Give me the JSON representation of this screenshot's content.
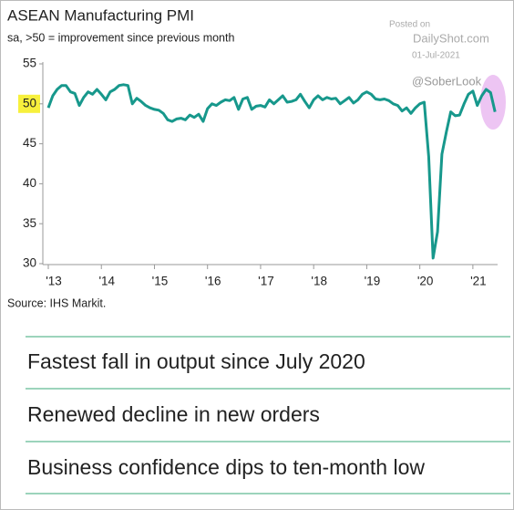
{
  "chart_data": {
    "type": "line",
    "title": "ASEAN Manufacturing PMI",
    "subtitle": "sa, >50 = improvement since previous month",
    "source": "Source: IHS Markit.",
    "watermark": [
      "Posted on",
      "DailyShot.com",
      "01-Jul-2021",
      "@SoberLook"
    ],
    "categories": [
      "'13",
      null,
      null,
      null,
      null,
      null,
      null,
      null,
      null,
      null,
      null,
      null,
      "'14",
      null,
      null,
      null,
      null,
      null,
      null,
      null,
      null,
      null,
      null,
      null,
      "'15",
      null,
      null,
      null,
      null,
      null,
      null,
      null,
      null,
      null,
      null,
      null,
      "'16",
      null,
      null,
      null,
      null,
      null,
      null,
      null,
      null,
      null,
      null,
      null,
      "'17",
      null,
      null,
      null,
      null,
      null,
      null,
      null,
      null,
      null,
      null,
      null,
      "'18",
      null,
      null,
      null,
      null,
      null,
      null,
      null,
      null,
      null,
      null,
      null,
      "'19",
      null,
      null,
      null,
      null,
      null,
      null,
      null,
      null,
      null,
      null,
      null,
      "'20",
      null,
      null,
      null,
      null,
      null,
      null,
      null,
      null,
      null,
      null,
      null,
      "'21",
      null,
      null,
      null,
      null,
      null
    ],
    "series": [
      {
        "color": "#17988c",
        "values": [
          49.5,
          51.0,
          51.8,
          52.3,
          52.3,
          51.5,
          51.3,
          49.8,
          50.8,
          51.5,
          51.2,
          51.8,
          51.2,
          50.5,
          51.5,
          51.8,
          52.3,
          52.4,
          52.3,
          50.0,
          50.7,
          50.3,
          49.8,
          49.5,
          49.3,
          49.2,
          48.8,
          48.0,
          47.8,
          48.1,
          48.2,
          48.0,
          48.6,
          48.3,
          48.7,
          47.8,
          49.4,
          50.0,
          49.8,
          50.2,
          50.5,
          50.4,
          50.8,
          49.3,
          50.6,
          50.8,
          49.3,
          49.7,
          49.8,
          49.6,
          50.5,
          50.0,
          50.5,
          51.0,
          50.2,
          50.3,
          50.5,
          51.2,
          50.3,
          49.5,
          50.5,
          51.0,
          50.5,
          50.8,
          50.6,
          50.7,
          50.0,
          50.4,
          50.8,
          50.1,
          50.5,
          51.2,
          51.5,
          51.2,
          50.6,
          50.5,
          50.6,
          50.4,
          50.0,
          49.8,
          49.1,
          49.5,
          48.8,
          49.5,
          50.0,
          50.2,
          43.4,
          30.7,
          34.0,
          43.7,
          46.5,
          49.0,
          48.5,
          48.6,
          50.0,
          51.2,
          51.6,
          49.8,
          51.0,
          51.8,
          51.4,
          49.0
        ]
      }
    ],
    "ylim": [
      30,
      55
    ],
    "yticks": [
      30,
      35,
      40,
      45,
      50,
      55
    ],
    "headlines": [
      "Fastest fall in output since July 2020",
      "Renewed decline in new orders",
      "Business confidence dips to ten-month low"
    ]
  }
}
